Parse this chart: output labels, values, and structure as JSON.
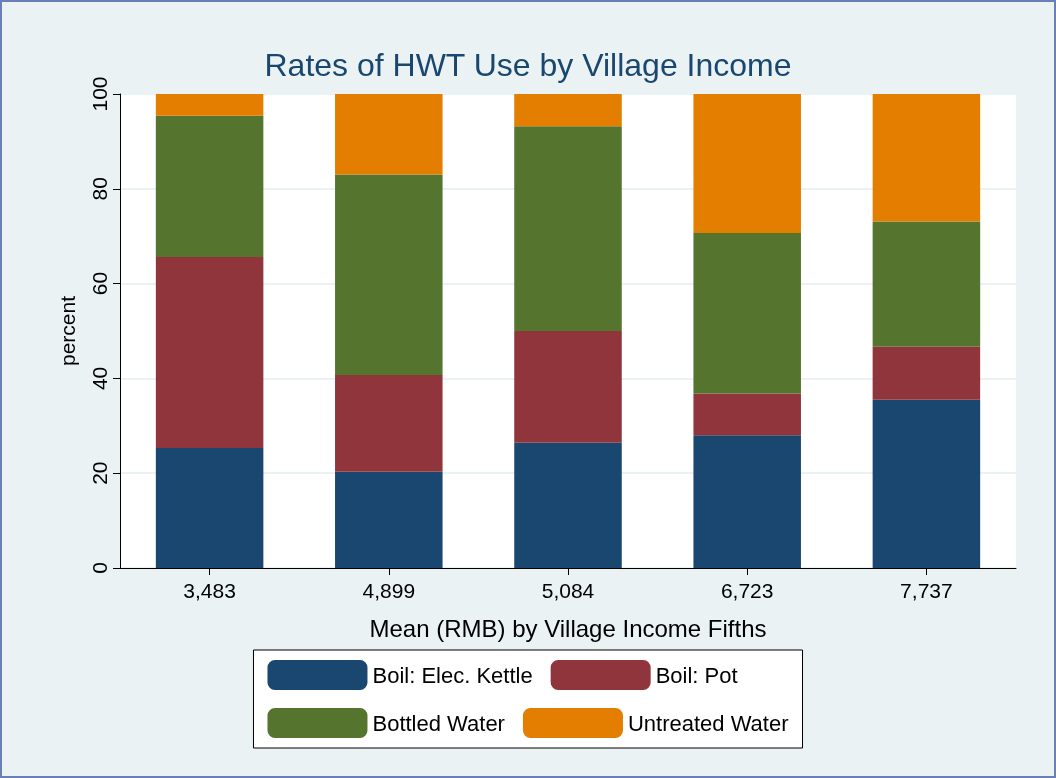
{
  "chart_data": {
    "type": "bar",
    "title": "Rates of HWT Use by Village Income",
    "xlabel": "Mean (RMB) by Village Income Fifths",
    "ylabel": "percent",
    "categories": [
      "3,483",
      "4,899",
      "5,084",
      "6,723",
      "7,737"
    ],
    "stacked": true,
    "ylim": [
      0,
      100
    ],
    "yticks": [
      0,
      20,
      40,
      60,
      80,
      100
    ],
    "grid": "y",
    "legend": "bottom",
    "series": [
      {
        "name": "Boil: Elec. Kettle",
        "color": "#1a476f",
        "values": [
          25.3,
          20.3,
          26.4,
          28.0,
          35.5
        ]
      },
      {
        "name": "Boil: Pot",
        "color": "#90353b",
        "values": [
          40.3,
          20.4,
          23.6,
          8.8,
          11.2
        ]
      },
      {
        "name": "Bottled Water",
        "color": "#55752f",
        "values": [
          29.8,
          42.3,
          43.2,
          33.9,
          26.4
        ]
      },
      {
        "name": "Untreated Water",
        "color": "#e37e00",
        "values": [
          4.6,
          17.0,
          6.8,
          29.3,
          26.9
        ]
      }
    ]
  }
}
